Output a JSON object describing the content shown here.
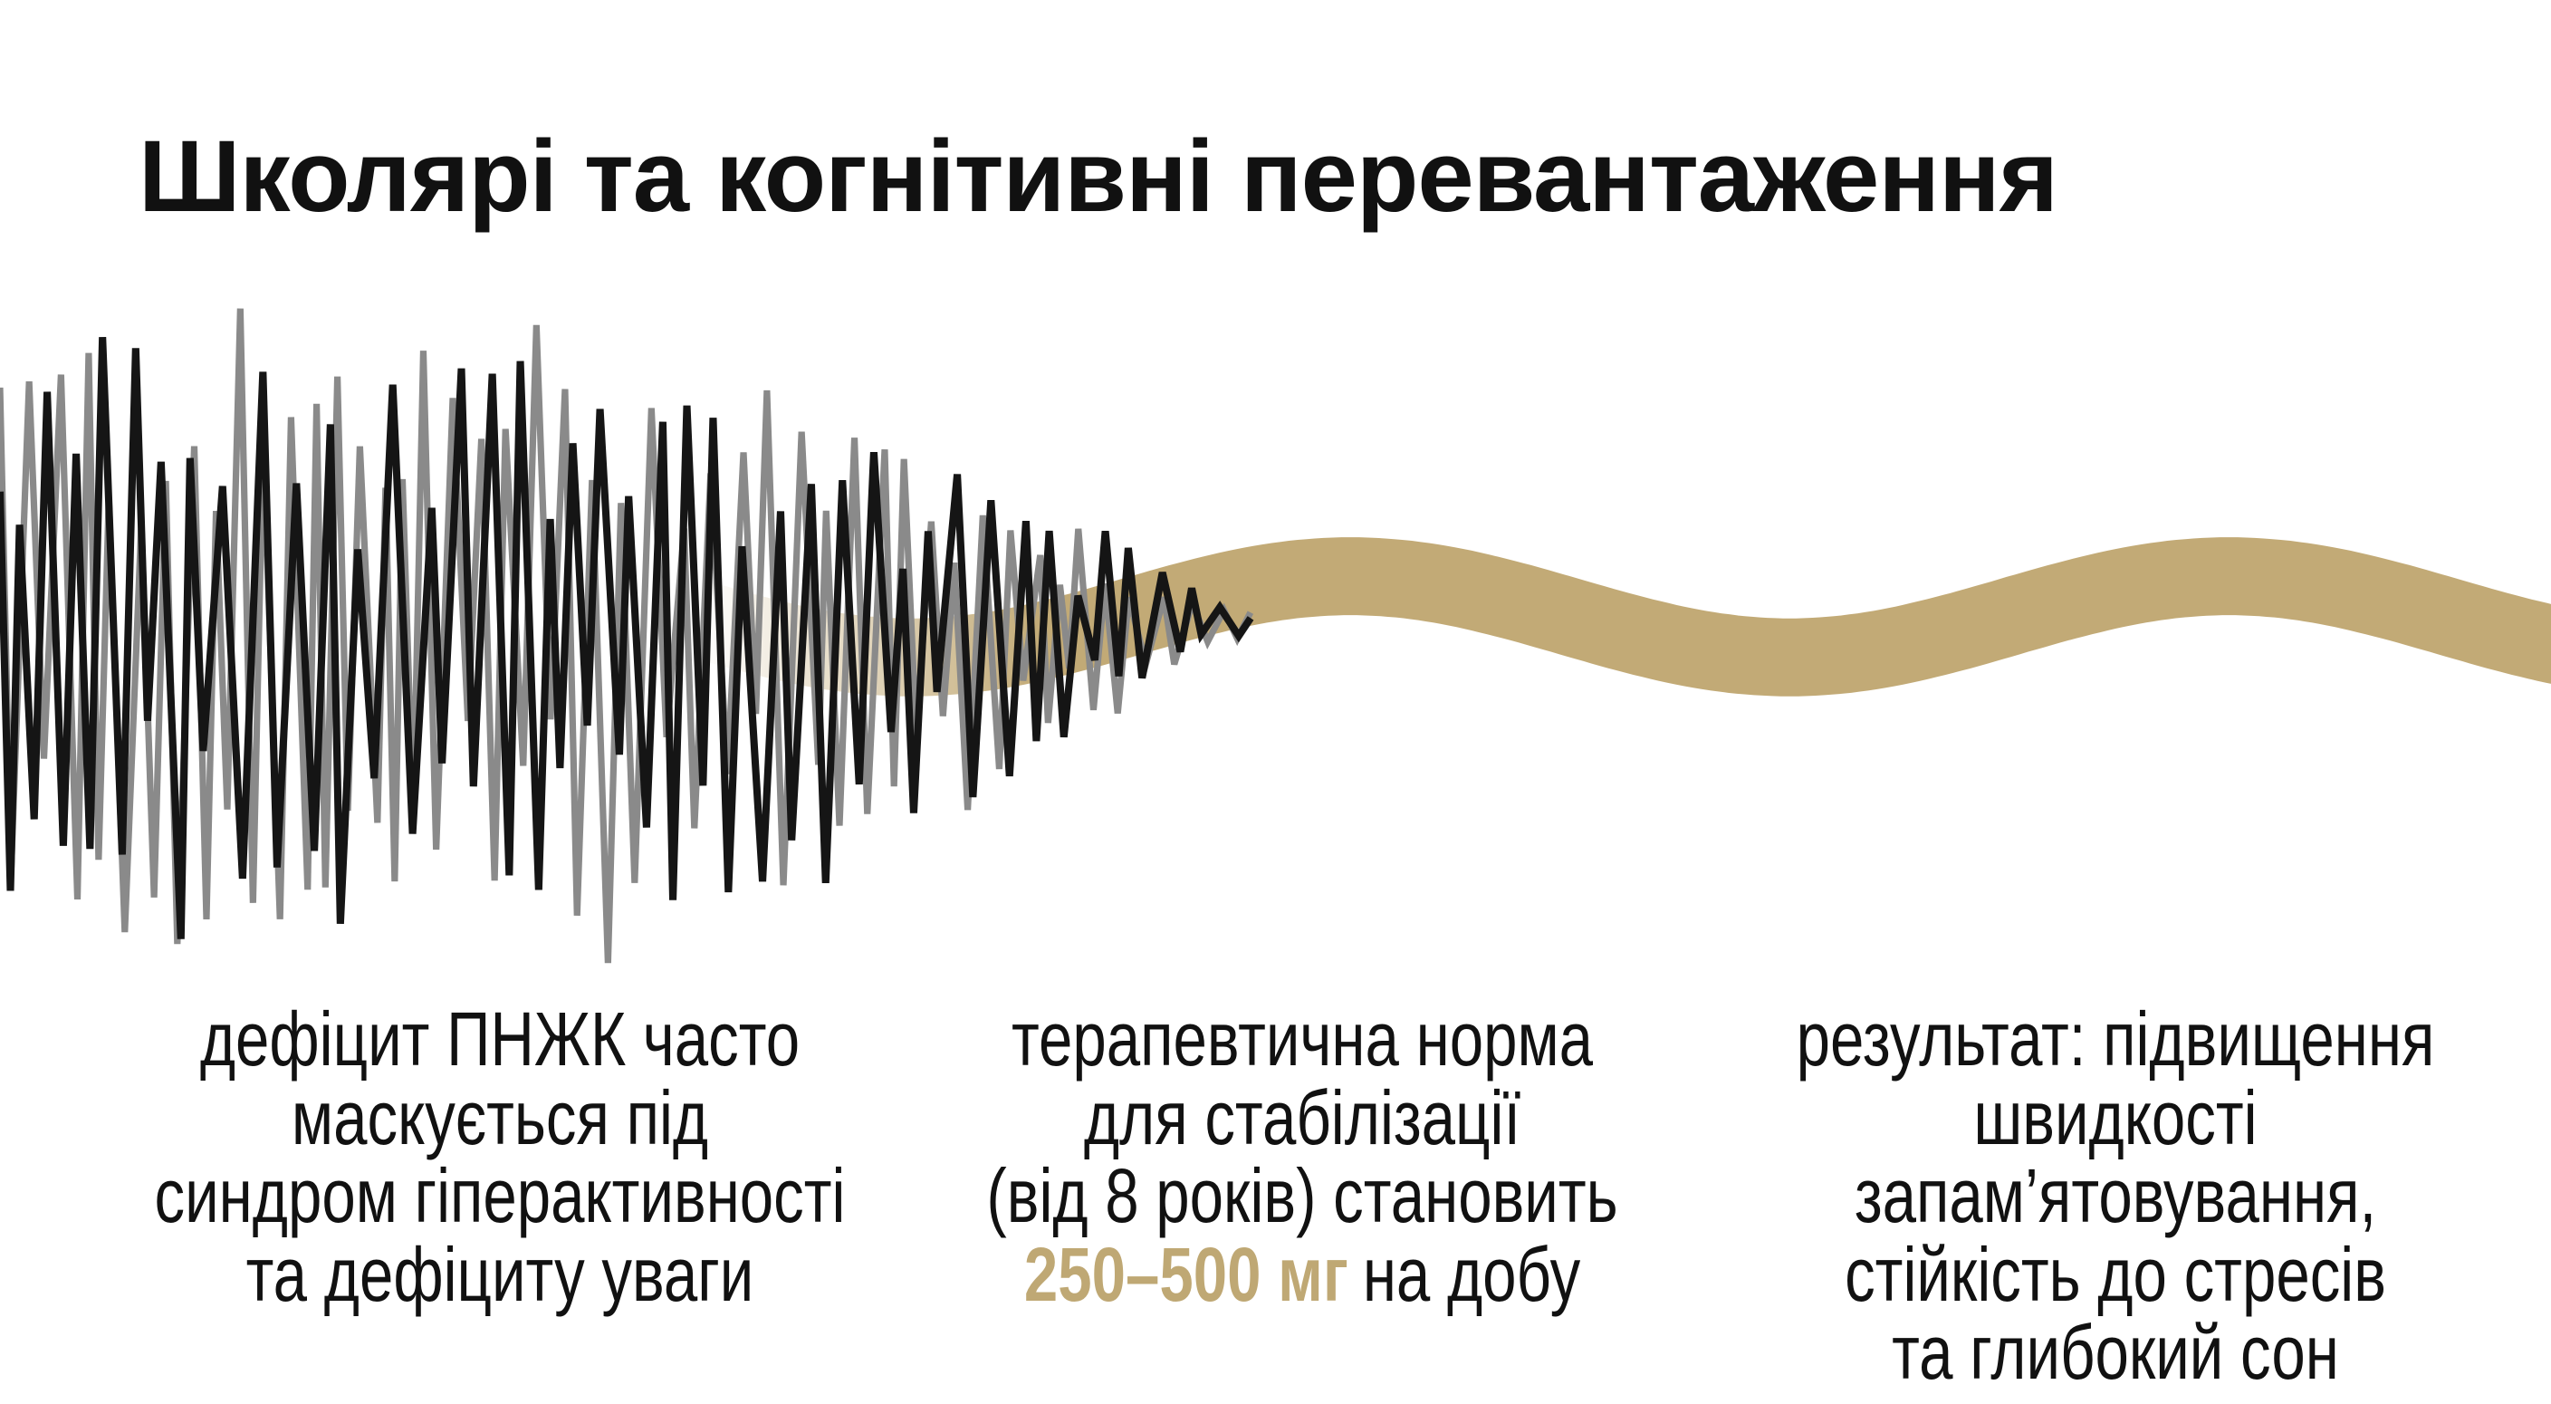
{
  "title": "Школярі та когнітивні перевантаження",
  "columns": [
    {
      "lines": [
        "дефіцит ПНЖК часто",
        "маскується під",
        "синдром гіперактивності",
        "та дефіциту уваги"
      ]
    },
    {
      "lines": [
        "терапевтична норма",
        "для стабілізації",
        "(від 8 років) становить"
      ],
      "highlight": "250–500 мг",
      "after": "на добу"
    },
    {
      "lines": [
        "результат: підвищення",
        "швидкості",
        "запам’ятовування,",
        "стійкість до стресів",
        "та глибокий сон"
      ]
    }
  ]
}
